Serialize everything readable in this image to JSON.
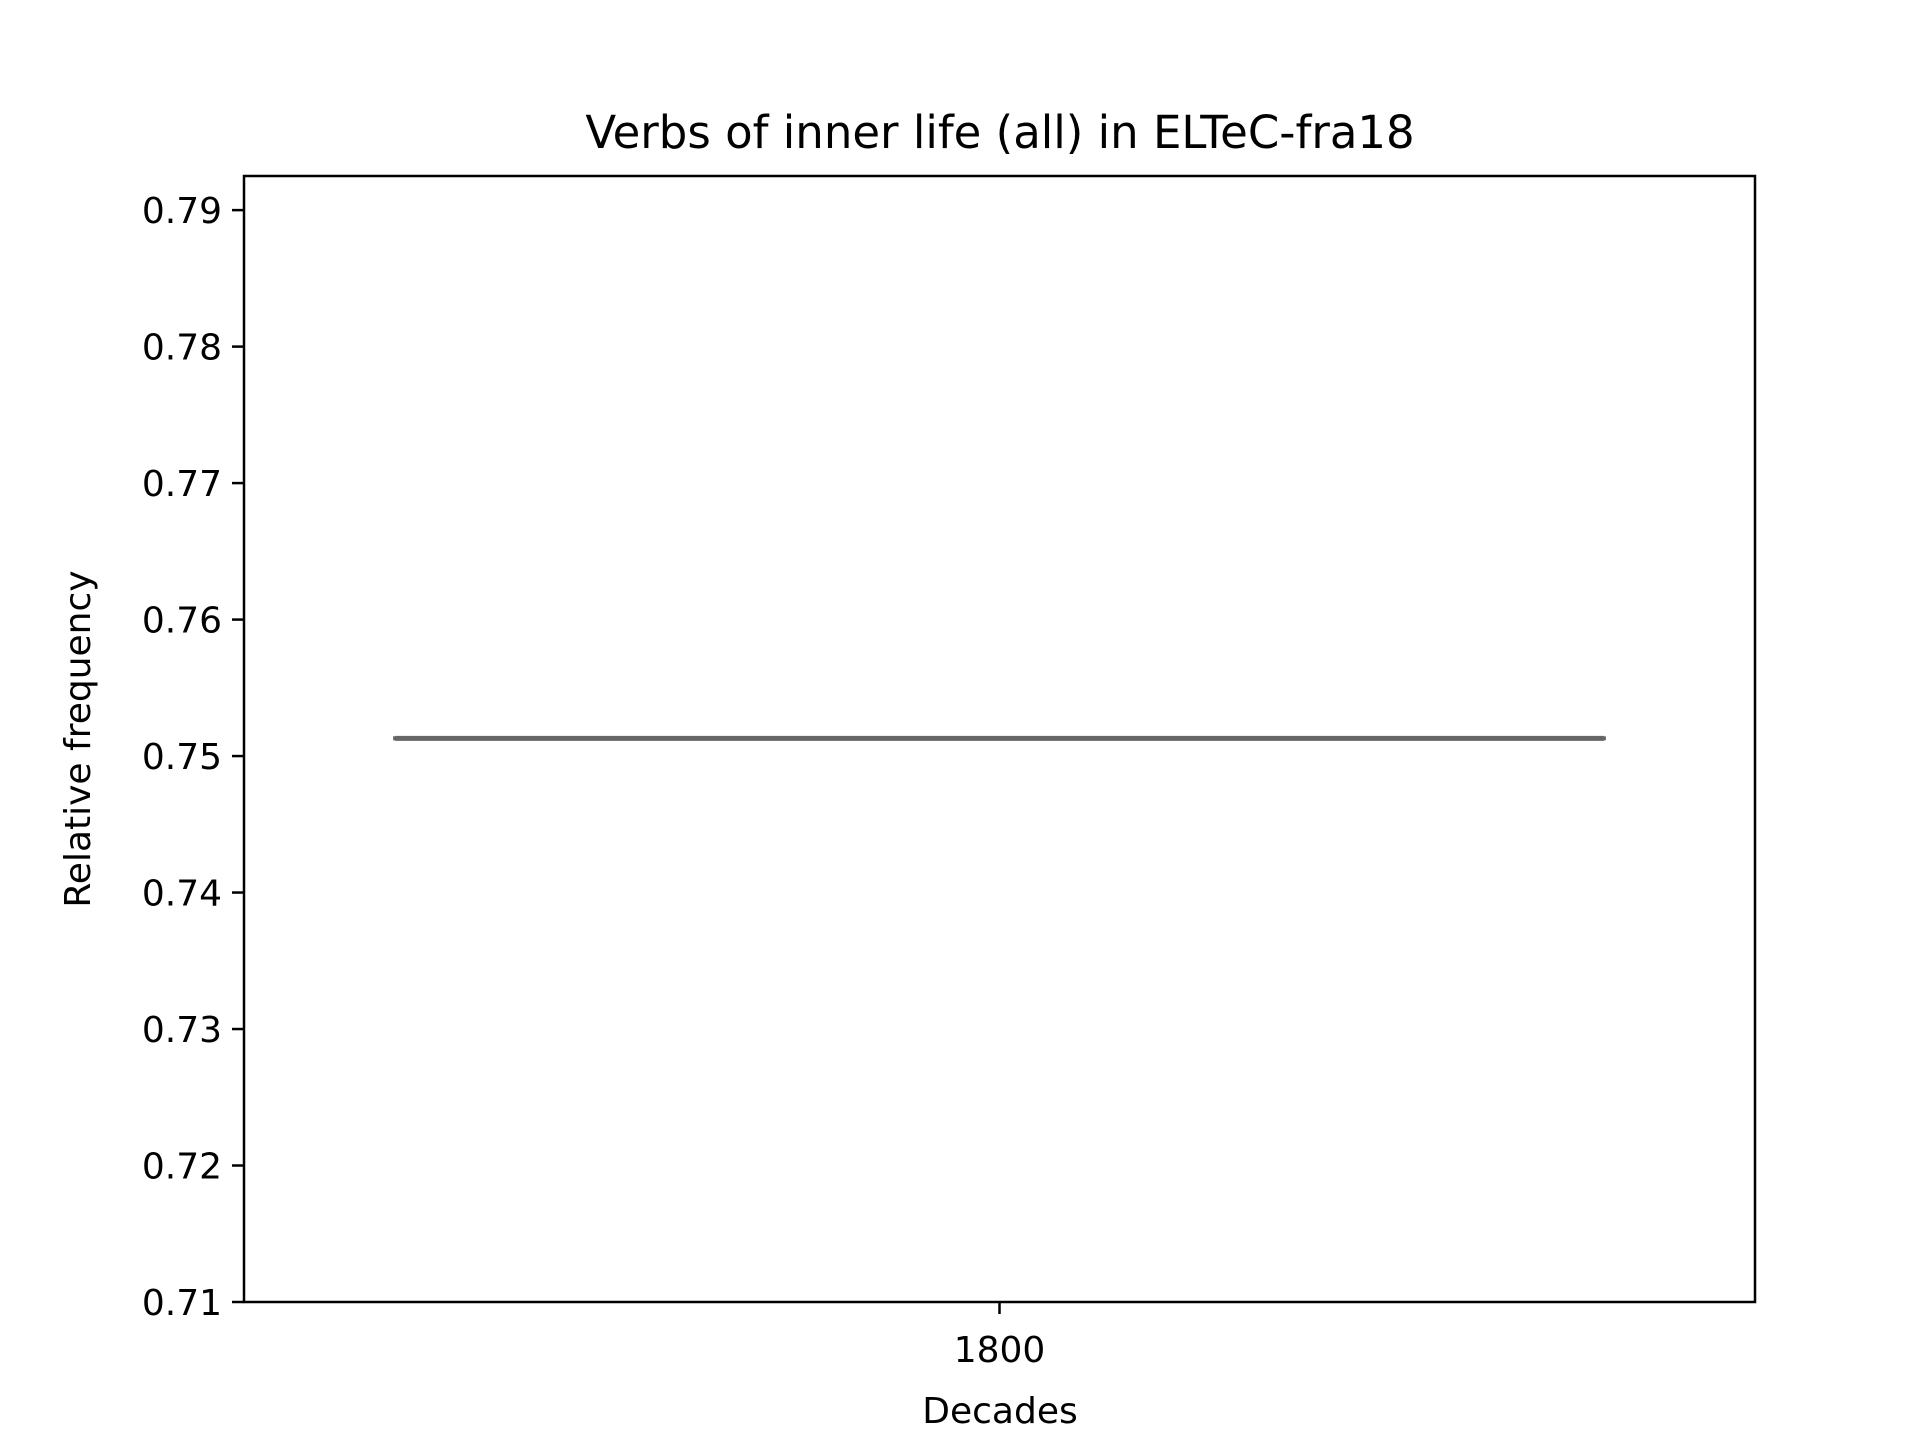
{
  "chart_data": {
    "type": "box",
    "title": "Verbs of inner life (all) in ELTeC-fra18",
    "xlabel": "Decades",
    "ylabel": "Relative frequency",
    "categories": [
      "1800"
    ],
    "series": [
      {
        "values": [
          0.7513
        ],
        "min": 0.7513,
        "q1": 0.7513,
        "median": 0.7513,
        "q3": 0.7513,
        "max": 0.7513
      }
    ],
    "ylim": [
      0.71,
      0.7925
    ],
    "yticks": [
      "0.71",
      "0.72",
      "0.73",
      "0.74",
      "0.75",
      "0.76",
      "0.77",
      "0.78",
      "0.79"
    ],
    "grid": false,
    "colors": {
      "box": "#666666",
      "axes": "#000000"
    }
  }
}
